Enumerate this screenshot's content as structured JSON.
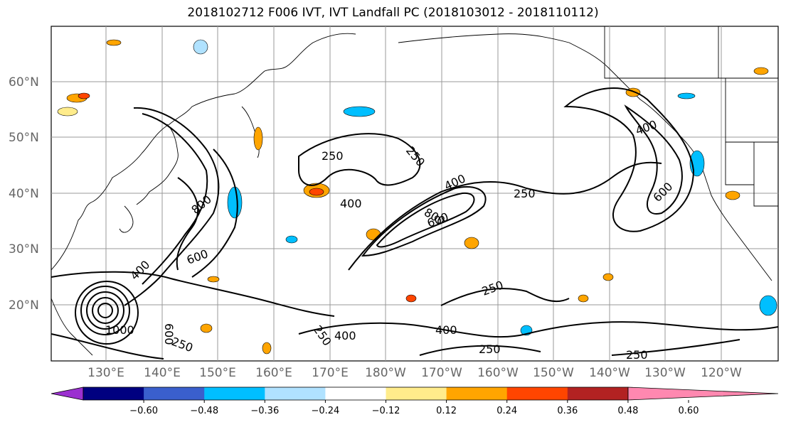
{
  "title": "2018102712 F006 IVT, IVT Landfall PC (2018103012 - 2018110112)",
  "lat_labels": [
    "60°N",
    "50°N",
    "40°N",
    "30°N",
    "20°N"
  ],
  "lon_labels": [
    "130°E",
    "140°E",
    "150°E",
    "160°E",
    "170°E",
    "180°W",
    "170°W",
    "160°W",
    "150°W",
    "140°W",
    "130°W",
    "120°W"
  ],
  "contour_labels": [
    "250",
    "250",
    "250",
    "250",
    "250",
    "250",
    "250",
    "250",
    "400",
    "400",
    "400",
    "400",
    "400",
    "400",
    "600",
    "600",
    "600",
    "600",
    "800",
    "800",
    "1000"
  ],
  "colorbar": {
    "tick_labels": [
      "−0.60",
      "−0.48",
      "−0.36",
      "−0.24",
      "−0.12",
      "0.12",
      "0.24",
      "0.36",
      "0.48",
      "0.60"
    ],
    "colors": [
      "#9b30d0",
      "#000080",
      "#3a5fcd",
      "#00bfff",
      "#b0e2ff",
      "#ffffff",
      "#ffec8b",
      "#ffa500",
      "#ff4500",
      "#b22222",
      "#ff88b0"
    ]
  },
  "palette": {
    "contour": "#000000",
    "grid": "#999999",
    "axis_label": "#666666"
  }
}
